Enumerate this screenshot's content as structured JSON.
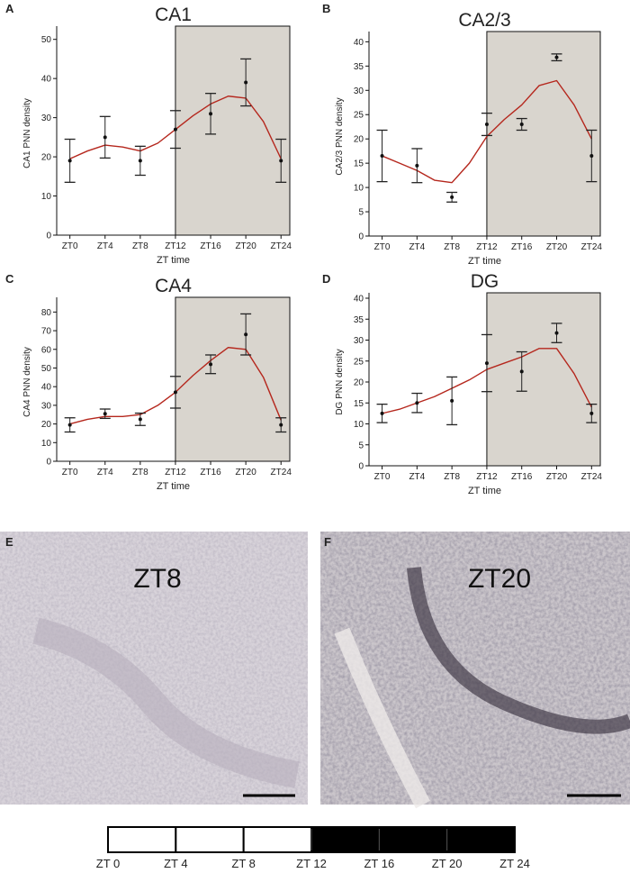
{
  "chart_data": [
    {
      "type": "errorbar_fit",
      "panel_label": "A",
      "title": "CA1",
      "x_label": "ZT time",
      "y_label": "CA1 PNN density",
      "x": [
        0,
        4,
        8,
        12,
        16,
        20,
        24
      ],
      "values": [
        19,
        25,
        19,
        27,
        31,
        39,
        19
      ],
      "errors": [
        5.5,
        5.3,
        3.7,
        4.8,
        5.2,
        6,
        5.5
      ],
      "fit_x": [
        0,
        2,
        4,
        6,
        8,
        10,
        12,
        14,
        16,
        18,
        20,
        22,
        24
      ],
      "fit_values": [
        19.5,
        21.5,
        23,
        22.5,
        21.5,
        23.5,
        27,
        30.5,
        33.5,
        35.5,
        35,
        29,
        19.5
      ],
      "fit_color": "#b5271d",
      "point_color": "#111111",
      "dark_phase_start": 12,
      "dark_phase_color": "#d9d5ce",
      "xlim": [
        -1.5,
        25
      ],
      "ylim": [
        0,
        52
      ],
      "yticks": [
        0,
        10,
        20,
        30,
        40,
        50
      ],
      "xticks": [
        {
          "value": 0,
          "label": "ZT0"
        },
        {
          "value": 4,
          "label": "ZT4"
        },
        {
          "value": 8,
          "label": "ZT8"
        },
        {
          "value": 12,
          "label": "ZT12"
        },
        {
          "value": 16,
          "label": "ZT16"
        },
        {
          "value": 20,
          "label": "ZT20"
        },
        {
          "value": 24,
          "label": "ZT24"
        }
      ]
    },
    {
      "type": "errorbar_fit",
      "panel_label": "B",
      "title": "CA2/3",
      "x_label": "ZT time",
      "y_label": "CA2/3 PNN density",
      "x": [
        0,
        4,
        8,
        12,
        16,
        20,
        24
      ],
      "values": [
        16.5,
        14.5,
        8,
        23,
        23,
        36.8,
        16.5
      ],
      "errors": [
        5.3,
        3.5,
        1,
        2.3,
        1.2,
        0.7,
        5.3
      ],
      "fit_x": [
        0,
        2,
        4,
        6,
        8,
        10,
        12,
        14,
        16,
        18,
        20,
        22,
        24
      ],
      "fit_values": [
        16.5,
        15,
        13.5,
        11.5,
        11,
        15,
        20.5,
        24,
        27,
        31,
        32,
        27,
        20
      ],
      "fit_color": "#b5271d",
      "point_color": "#111111",
      "dark_phase_start": 12,
      "dark_phase_color": "#d9d5ce",
      "xlim": [
        -1.5,
        25
      ],
      "ylim": [
        0,
        41
      ],
      "yticks": [
        0,
        5,
        10,
        15,
        20,
        25,
        30,
        35,
        40
      ],
      "xticks": [
        {
          "value": 0,
          "label": "ZT0"
        },
        {
          "value": 4,
          "label": "ZT4"
        },
        {
          "value": 8,
          "label": "ZT8"
        },
        {
          "value": 12,
          "label": "ZT12"
        },
        {
          "value": 16,
          "label": "ZT16"
        },
        {
          "value": 20,
          "label": "ZT20"
        },
        {
          "value": 24,
          "label": "ZT24"
        }
      ]
    },
    {
      "type": "errorbar_fit",
      "panel_label": "C",
      "title": "CA4",
      "x_label": "ZT time",
      "y_label": "CA4 PNN density",
      "x": [
        0,
        4,
        8,
        12,
        16,
        20,
        24
      ],
      "values": [
        19.5,
        25.5,
        22.5,
        37,
        52,
        68,
        19.5
      ],
      "errors": [
        3.8,
        2.5,
        3.3,
        8.5,
        5,
        11,
        3.8
      ],
      "fit_x": [
        0,
        2,
        4,
        6,
        8,
        10,
        12,
        14,
        16,
        18,
        20,
        22,
        24
      ],
      "fit_values": [
        20,
        22.5,
        24,
        24,
        25,
        30,
        37,
        46,
        54,
        61,
        60,
        45,
        22
      ],
      "fit_color": "#b5271d",
      "point_color": "#111111",
      "dark_phase_start": 12,
      "dark_phase_color": "#d9d5ce",
      "xlim": [
        -1.5,
        25
      ],
      "ylim": [
        0,
        85
      ],
      "yticks": [
        0,
        10,
        20,
        30,
        40,
        50,
        60,
        70,
        80
      ],
      "xticks": [
        {
          "value": 0,
          "label": "ZT0"
        },
        {
          "value": 4,
          "label": "ZT4"
        },
        {
          "value": 8,
          "label": "ZT8"
        },
        {
          "value": 12,
          "label": "ZT12"
        },
        {
          "value": 16,
          "label": "ZT16"
        },
        {
          "value": 20,
          "label": "ZT20"
        },
        {
          "value": 24,
          "label": "ZT24"
        }
      ]
    },
    {
      "type": "errorbar_fit",
      "panel_label": "D",
      "title": "DG",
      "x_label": "ZT time",
      "y_label": "DG PNN density",
      "x": [
        0,
        4,
        8,
        12,
        16,
        20,
        24
      ],
      "values": [
        12.5,
        15,
        15.5,
        24.5,
        22.5,
        31.7,
        12.5
      ],
      "errors": [
        2.2,
        2.3,
        5.7,
        6.8,
        4.7,
        2.3,
        2.2
      ],
      "fit_x": [
        0,
        2,
        4,
        6,
        8,
        10,
        12,
        14,
        16,
        18,
        20,
        22,
        24
      ],
      "fit_values": [
        12.5,
        13.5,
        15,
        16.5,
        18.5,
        20.5,
        23,
        24.5,
        26,
        28,
        28,
        22,
        14
      ],
      "fit_color": "#b5271d",
      "point_color": "#111111",
      "dark_phase_start": 12,
      "dark_phase_color": "#d9d5ce",
      "xlim": [
        -1.5,
        25
      ],
      "ylim": [
        0,
        40
      ],
      "yticks": [
        0,
        5,
        10,
        15,
        20,
        25,
        30,
        35,
        40
      ],
      "xticks": [
        {
          "value": 0,
          "label": "ZT0"
        },
        {
          "value": 4,
          "label": "ZT4"
        },
        {
          "value": 8,
          "label": "ZT8"
        },
        {
          "value": 12,
          "label": "ZT12"
        },
        {
          "value": 16,
          "label": "ZT16"
        },
        {
          "value": 20,
          "label": "ZT20"
        },
        {
          "value": 24,
          "label": "ZT24"
        }
      ]
    }
  ],
  "micrographs": [
    {
      "panel_label": "E",
      "label": "ZT8"
    },
    {
      "panel_label": "F",
      "label": "ZT20"
    }
  ],
  "timeline": {
    "labels": [
      "ZT 0",
      "ZT 4",
      "ZT 8",
      "ZT 12",
      "ZT 16",
      "ZT 20",
      "ZT 24"
    ]
  }
}
